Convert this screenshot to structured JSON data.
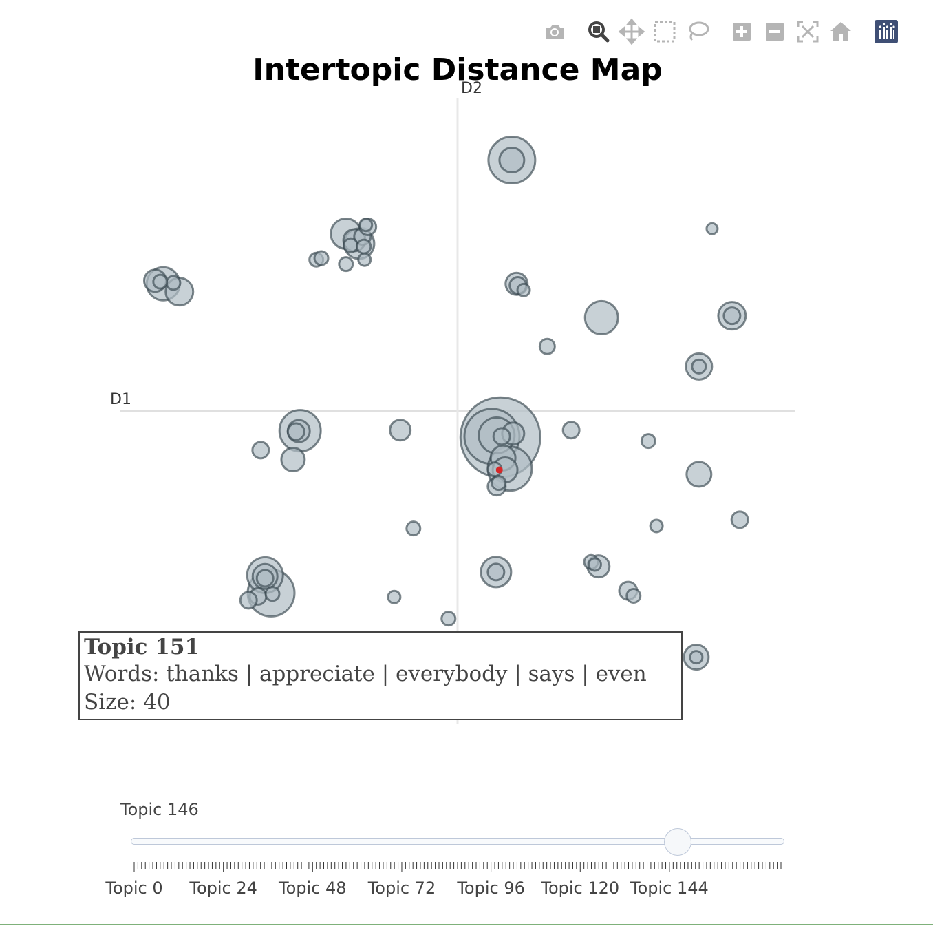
{
  "modebar": {
    "buttons": [
      "camera-icon",
      "zoom-icon",
      "pan-icon",
      "box-select-icon",
      "lasso-select-icon",
      "zoom-in-icon",
      "zoom-out-icon",
      "autoscale-icon",
      "reset-axes-icon",
      "plotly-logo-icon"
    ],
    "active": "zoom-icon"
  },
  "chart_data": {
    "type": "scatter",
    "title": "Intertopic Distance Map",
    "xlabel": "D1",
    "ylabel": "D2",
    "xlim": [
      -1,
      1
    ],
    "ylim": [
      -1,
      1
    ],
    "grid": false,
    "axis_lines": "zero-lines only",
    "marker_color": "#B0BEC5",
    "marker_edge_color": "#37474F",
    "highlight_color": "#d62728",
    "points": [
      {
        "x": 0.161,
        "y": 0.801,
        "r": 34
      },
      {
        "x": 0.161,
        "y": 0.801,
        "r": 18
      },
      {
        "x": 0.755,
        "y": 0.582,
        "r": 8
      },
      {
        "x": -0.331,
        "y": 0.566,
        "r": 22
      },
      {
        "x": -0.292,
        "y": 0.534,
        "r": 22
      },
      {
        "x": -0.306,
        "y": 0.545,
        "r": 16
      },
      {
        "x": -0.282,
        "y": 0.557,
        "r": 12
      },
      {
        "x": -0.266,
        "y": 0.588,
        "r": 12
      },
      {
        "x": -0.272,
        "y": 0.594,
        "r": 9
      },
      {
        "x": -0.317,
        "y": 0.529,
        "r": 10
      },
      {
        "x": -0.278,
        "y": 0.525,
        "r": 10
      },
      {
        "x": -0.276,
        "y": 0.483,
        "r": 9
      },
      {
        "x": -0.419,
        "y": 0.483,
        "r": 10
      },
      {
        "x": -0.404,
        "y": 0.488,
        "r": 10
      },
      {
        "x": -0.331,
        "y": 0.469,
        "r": 10
      },
      {
        "x": -0.873,
        "y": 0.406,
        "r": 24
      },
      {
        "x": -0.897,
        "y": 0.416,
        "r": 16
      },
      {
        "x": -0.825,
        "y": 0.381,
        "r": 20
      },
      {
        "x": -0.843,
        "y": 0.409,
        "r": 10
      },
      {
        "x": -0.882,
        "y": 0.413,
        "r": 10
      },
      {
        "x": 0.175,
        "y": 0.406,
        "r": 16
      },
      {
        "x": 0.179,
        "y": 0.401,
        "r": 12
      },
      {
        "x": 0.196,
        "y": 0.386,
        "r": 9
      },
      {
        "x": 0.427,
        "y": 0.298,
        "r": 24
      },
      {
        "x": 0.814,
        "y": 0.304,
        "r": 20
      },
      {
        "x": 0.814,
        "y": 0.304,
        "r": 12
      },
      {
        "x": 0.266,
        "y": 0.206,
        "r": 11
      },
      {
        "x": 0.716,
        "y": 0.142,
        "r": 19
      },
      {
        "x": 0.716,
        "y": 0.142,
        "r": 10
      },
      {
        "x": 0.127,
        "y": -0.084,
        "r": 58
      },
      {
        "x": 0.102,
        "y": -0.081,
        "r": 40
      },
      {
        "x": 0.116,
        "y": -0.078,
        "r": 26
      },
      {
        "x": 0.165,
        "y": -0.072,
        "r": 16
      },
      {
        "x": 0.131,
        "y": -0.081,
        "r": 12
      },
      {
        "x": 0.135,
        "y": -0.15,
        "r": 18
      },
      {
        "x": 0.155,
        "y": -0.184,
        "r": 32
      },
      {
        "x": 0.141,
        "y": -0.188,
        "r": 18
      },
      {
        "x": 0.11,
        "y": -0.186,
        "r": 10
      },
      {
        "x": 0.122,
        "y": -0.23,
        "r": 10
      },
      {
        "x": 0.116,
        "y": -0.241,
        "r": 13
      },
      {
        "x": -0.467,
        "y": -0.063,
        "r": 30
      },
      {
        "x": -0.471,
        "y": -0.064,
        "r": 16
      },
      {
        "x": -0.479,
        "y": -0.066,
        "r": 12
      },
      {
        "x": -0.584,
        "y": -0.125,
        "r": 12
      },
      {
        "x": -0.488,
        "y": -0.155,
        "r": 17
      },
      {
        "x": -0.17,
        "y": -0.061,
        "r": 15
      },
      {
        "x": 0.337,
        "y": -0.061,
        "r": 12
      },
      {
        "x": 0.566,
        "y": -0.096,
        "r": 10
      },
      {
        "x": 0.716,
        "y": -0.202,
        "r": 18
      },
      {
        "x": -0.131,
        "y": -0.375,
        "r": 10
      },
      {
        "x": 0.59,
        "y": -0.367,
        "r": 9
      },
      {
        "x": 0.837,
        "y": -0.347,
        "r": 12
      },
      {
        "x": 0.396,
        "y": -0.482,
        "r": 10
      },
      {
        "x": 0.418,
        "y": -0.496,
        "r": 16
      },
      {
        "x": 0.407,
        "y": -0.49,
        "r": 9
      },
      {
        "x": 0.114,
        "y": -0.514,
        "r": 22
      },
      {
        "x": 0.114,
        "y": -0.514,
        "r": 12
      },
      {
        "x": -0.571,
        "y": -0.524,
        "r": 26
      },
      {
        "x": -0.553,
        "y": -0.581,
        "r": 34
      },
      {
        "x": -0.571,
        "y": -0.528,
        "r": 18
      },
      {
        "x": -0.571,
        "y": -0.534,
        "r": 12
      },
      {
        "x": -0.592,
        "y": -0.592,
        "r": 12
      },
      {
        "x": -0.62,
        "y": -0.604,
        "r": 12
      },
      {
        "x": -0.549,
        "y": -0.584,
        "r": 10
      },
      {
        "x": -0.188,
        "y": -0.594,
        "r": 9
      },
      {
        "x": 0.506,
        "y": -0.574,
        "r": 13
      },
      {
        "x": 0.522,
        "y": -0.59,
        "r": 10
      },
      {
        "x": -0.027,
        "y": -0.663,
        "r": 10
      },
      {
        "x": 0.708,
        "y": -0.786,
        "r": 18
      },
      {
        "x": 0.708,
        "y": -0.786,
        "r": 9
      }
    ],
    "highlight_point": {
      "x": 0.124,
      "y": -0.188
    },
    "tooltip": {
      "title": "Topic 151",
      "words": "Words: thanks | appreciate | everybody | says | even",
      "size": "Size: 40"
    },
    "slider": {
      "current_label": "Topic 146",
      "value": 146,
      "min": 0,
      "max": 174,
      "tick_labels": [
        "Topic 0",
        "Topic 24",
        "Topic 48",
        "Topic 72",
        "Topic 96",
        "Topic 120",
        "Topic 144"
      ],
      "tick_values": [
        0,
        24,
        48,
        72,
        96,
        120,
        144
      ]
    }
  }
}
